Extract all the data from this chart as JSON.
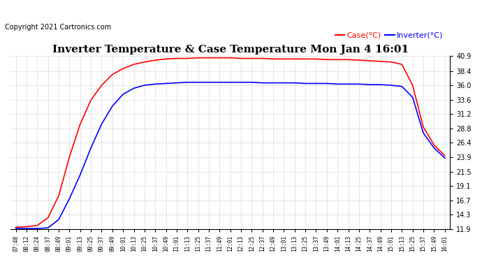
{
  "title": "Inverter Temperature & Case Temperature Mon Jan 4 16:01",
  "copyright_text": "Copyright 2021 Cartronics.com",
  "legend_case": "Case(°C)",
  "legend_inverter": "Inverter(°C)",
  "case_color": "red",
  "inverter_color": "blue",
  "y_ticks": [
    11.9,
    14.3,
    16.7,
    19.1,
    21.5,
    23.9,
    26.4,
    28.8,
    31.2,
    33.6,
    36.0,
    38.4,
    40.9
  ],
  "y_min": 11.9,
  "y_max": 40.9,
  "background_color": "#ffffff",
  "grid_color": "#cccccc",
  "x_labels": [
    "07:48",
    "08:12",
    "08:24",
    "08:37",
    "08:49",
    "09:01",
    "09:13",
    "09:25",
    "09:37",
    "09:49",
    "10:01",
    "10:13",
    "10:25",
    "10:37",
    "10:49",
    "11:01",
    "11:13",
    "11:25",
    "11:37",
    "11:49",
    "12:01",
    "12:13",
    "12:25",
    "12:37",
    "12:49",
    "13:01",
    "13:13",
    "13:25",
    "13:37",
    "13:49",
    "14:01",
    "14:13",
    "14:25",
    "14:37",
    "14:49",
    "15:01",
    "15:13",
    "15:25",
    "15:37",
    "15:49",
    "16:01"
  ],
  "case_values": [
    12.2,
    12.3,
    12.5,
    13.8,
    17.5,
    24.0,
    29.5,
    33.5,
    36.0,
    37.8,
    38.8,
    39.5,
    39.9,
    40.2,
    40.4,
    40.5,
    40.5,
    40.6,
    40.6,
    40.6,
    40.6,
    40.5,
    40.5,
    40.5,
    40.4,
    40.4,
    40.4,
    40.4,
    40.4,
    40.3,
    40.3,
    40.3,
    40.2,
    40.1,
    40.0,
    39.9,
    39.5,
    36.0,
    29.0,
    26.0,
    24.2
  ],
  "inverter_values": [
    12.0,
    12.0,
    12.0,
    12.1,
    13.5,
    17.0,
    21.0,
    25.5,
    29.5,
    32.5,
    34.5,
    35.5,
    36.0,
    36.2,
    36.3,
    36.4,
    36.5,
    36.5,
    36.5,
    36.5,
    36.5,
    36.5,
    36.5,
    36.4,
    36.4,
    36.4,
    36.4,
    36.3,
    36.3,
    36.3,
    36.2,
    36.2,
    36.2,
    36.1,
    36.1,
    36.0,
    35.8,
    34.0,
    28.0,
    25.5,
    23.8
  ]
}
